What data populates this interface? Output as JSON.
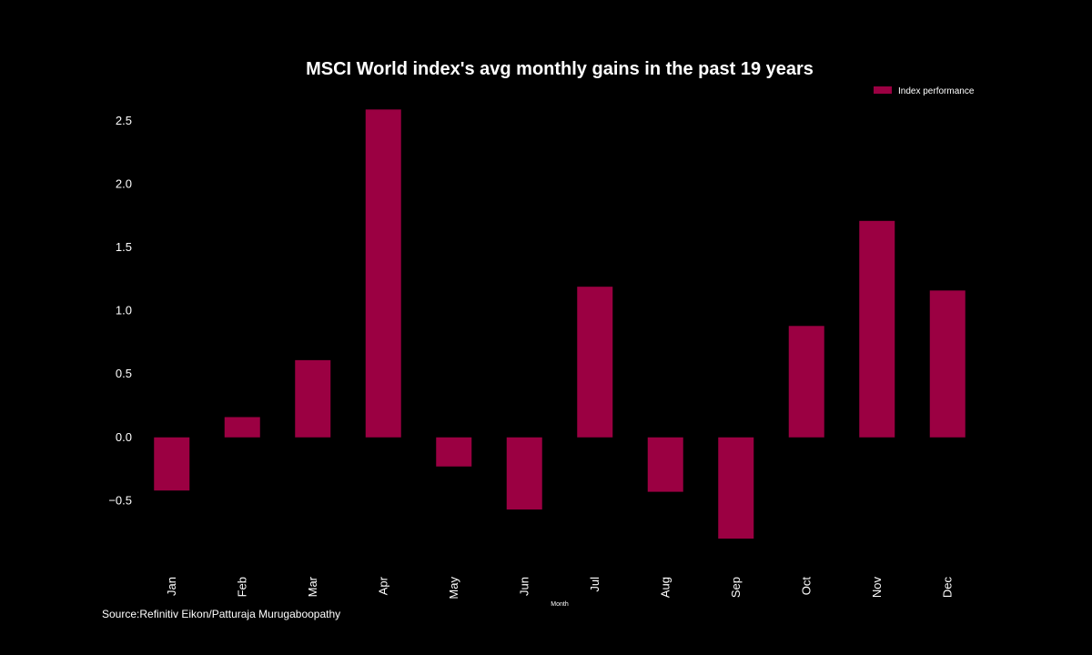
{
  "chart_data": {
    "type": "bar",
    "title": "MSCI World index's avg monthly gains in the past 19 years",
    "xlabel": "Month",
    "ylabel": "",
    "categories": [
      "Jan",
      "Feb",
      "Mar",
      "Apr",
      "May",
      "Jun",
      "Jul",
      "Aug",
      "Sep",
      "Oct",
      "Nov",
      "Dec"
    ],
    "series": [
      {
        "name": "Index performance",
        "values": [
          -0.42,
          0.16,
          0.61,
          2.59,
          -0.23,
          -0.57,
          1.19,
          -0.43,
          -0.8,
          0.88,
          1.71,
          1.16
        ]
      }
    ],
    "ylim": [
      -0.9,
      2.65
    ],
    "yticks": [
      -0.5,
      0.0,
      0.5,
      1.0,
      1.5,
      2.0,
      2.5
    ],
    "ytick_labels": [
      "−0.5",
      "0.0",
      "0.5",
      "1.0",
      "1.5",
      "2.0",
      "2.5"
    ],
    "grid": false,
    "legend_position": "top-right",
    "colors": {
      "bar": "#9b0042",
      "background": "#000000",
      "text": "#ffffff"
    }
  },
  "source": "Source:Refinitiv Eikon/Patturaja Murugaboopathy"
}
